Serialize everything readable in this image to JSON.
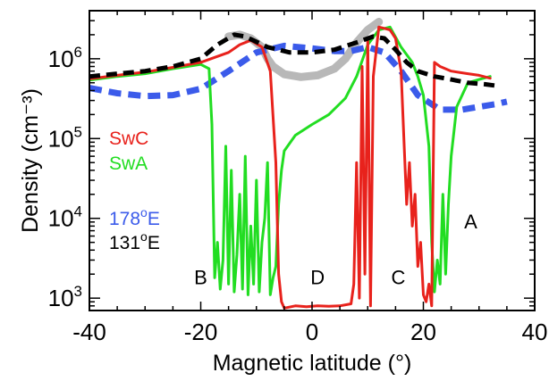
{
  "chart_data": {
    "type": "line",
    "xlabel": "Magnetic latitude (°)",
    "ylabel": "Density (cm⁻³)",
    "xlim": [
      -40,
      40
    ],
    "ylim": [
      700,
      4000000
    ],
    "yscale": "log",
    "grid": false,
    "x_ticks": [
      {
        "value": -40,
        "label": "-40"
      },
      {
        "value": -20,
        "label": "-20"
      },
      {
        "value": 0,
        "label": "0"
      },
      {
        "value": 20,
        "label": "20"
      },
      {
        "value": 40,
        "label": "40"
      }
    ],
    "y_ticks": [
      {
        "value": 1000,
        "base": "10",
        "exp": "3"
      },
      {
        "value": 10000,
        "base": "10",
        "exp": "4"
      },
      {
        "value": 100000,
        "base": "10",
        "exp": "5"
      },
      {
        "value": 1000000,
        "base": "10",
        "exp": "6"
      }
    ],
    "legend": [
      {
        "text": "SwC",
        "color": "#e8221c"
      },
      {
        "text": "SwA",
        "color": "#22dd22"
      },
      {
        "base": "178",
        "sup": "o",
        "rest": "E",
        "color": "#3b5bea"
      },
      {
        "base": "131",
        "sup": "o",
        "rest": "E",
        "color": "#000000"
      }
    ],
    "annotations": [
      {
        "text": "A",
        "x": 28.5,
        "y": 7500
      },
      {
        "text": "B",
        "x": -20,
        "y": 1500
      },
      {
        "text": "C",
        "x": 15.5,
        "y": 1500
      },
      {
        "text": "D",
        "x": 1,
        "y": 1500
      }
    ],
    "series": [
      {
        "color": "#b8b8b8",
        "width": 9,
        "dash": "",
        "points": [
          [
            -15,
            1900000
          ],
          [
            -13,
            2000000
          ],
          [
            -11,
            1800000
          ],
          [
            -9,
            1400000
          ],
          [
            -8,
            1000000
          ],
          [
            -7,
            800000
          ],
          [
            -5,
            640000
          ],
          [
            -2,
            590000
          ],
          [
            1,
            620000
          ],
          [
            4,
            750000
          ],
          [
            6,
            1000000
          ],
          [
            8,
            1600000
          ],
          [
            10,
            2300000
          ],
          [
            12,
            2900000
          ]
        ]
      },
      {
        "color": "#3b5bea",
        "width": 7,
        "dash": "14,8",
        "points": [
          [
            -40,
            430000
          ],
          [
            -35,
            370000
          ],
          [
            -30,
            340000
          ],
          [
            -25,
            350000
          ],
          [
            -20,
            420000
          ],
          [
            -15,
            700000
          ],
          [
            -10,
            1200000
          ],
          [
            -5,
            1450000
          ],
          [
            0,
            1350000
          ],
          [
            4,
            1250000
          ],
          [
            7,
            1250000
          ],
          [
            10,
            1400000
          ],
          [
            13,
            1200000
          ],
          [
            16,
            700000
          ],
          [
            19,
            350000
          ],
          [
            23,
            230000
          ],
          [
            27,
            230000
          ],
          [
            30,
            250000
          ],
          [
            33,
            270000
          ],
          [
            35,
            290000
          ]
        ]
      },
      {
        "color": "#22dd22",
        "width": 3,
        "dash": "",
        "points": [
          [
            -40,
            540000
          ],
          [
            -35,
            600000
          ],
          [
            -30,
            650000
          ],
          [
            -25,
            750000
          ],
          [
            -20,
            850000
          ],
          [
            -18.5,
            750000
          ],
          [
            -18,
            150000
          ],
          [
            -17.5,
            1800
          ],
          [
            -17,
            5000
          ],
          [
            -16.5,
            1300
          ],
          [
            -16,
            3000
          ],
          [
            -15.5,
            80000
          ],
          [
            -15,
            1500
          ],
          [
            -14.5,
            40000
          ],
          [
            -14,
            1200
          ],
          [
            -13.5,
            3500
          ],
          [
            -13,
            20000
          ],
          [
            -12.5,
            1300
          ],
          [
            -12,
            60000
          ],
          [
            -11.5,
            1100
          ],
          [
            -11,
            8000
          ],
          [
            -10.5,
            1500
          ],
          [
            -10,
            30000
          ],
          [
            -9.5,
            1200
          ],
          [
            -9,
            5000
          ],
          [
            -8.5,
            10000
          ],
          [
            -8,
            50000
          ],
          [
            -7.5,
            1100
          ],
          [
            -7,
            1800
          ],
          [
            -6.5,
            2500
          ],
          [
            -6,
            15000
          ],
          [
            -5.5,
            40000
          ],
          [
            -5,
            70000
          ],
          [
            -3,
            110000
          ],
          [
            0,
            150000
          ],
          [
            3,
            200000
          ],
          [
            6,
            320000
          ],
          [
            8,
            600000
          ],
          [
            10,
            1500000
          ],
          [
            12,
            2300000
          ],
          [
            14,
            2500000
          ],
          [
            16,
            1400000
          ],
          [
            18,
            900000
          ],
          [
            19,
            600000
          ],
          [
            20,
            350000
          ],
          [
            21,
            80000
          ],
          [
            21.5,
            5000
          ],
          [
            22,
            1200
          ],
          [
            22.5,
            3000
          ],
          [
            23,
            1500
          ],
          [
            23.5,
            20000
          ],
          [
            24,
            2000
          ],
          [
            24.5,
            15000
          ],
          [
            25,
            60000
          ],
          [
            26,
            250000
          ],
          [
            28,
            500000
          ],
          [
            30,
            550000
          ],
          [
            32,
            600000
          ]
        ]
      },
      {
        "color": "#e8221c",
        "width": 3,
        "dash": "",
        "points": [
          [
            -40,
            560000
          ],
          [
            -35,
            620000
          ],
          [
            -30,
            680000
          ],
          [
            -25,
            780000
          ],
          [
            -20,
            900000
          ],
          [
            -15,
            1200000
          ],
          [
            -13,
            1500000
          ],
          [
            -11,
            1700000
          ],
          [
            -9,
            1400000
          ],
          [
            -7.5,
            700000
          ],
          [
            -6.5,
            50000
          ],
          [
            -6,
            2000
          ],
          [
            -5.5,
            900
          ],
          [
            -5,
            750
          ],
          [
            -3,
            800
          ],
          [
            -1,
            780
          ],
          [
            1,
            800
          ],
          [
            3,
            790
          ],
          [
            5,
            800
          ],
          [
            7,
            850
          ],
          [
            7.5,
            1500
          ],
          [
            8,
            50000
          ],
          [
            8.5,
            1000
          ],
          [
            9,
            800000
          ],
          [
            9.5,
            2000
          ],
          [
            10,
            1800000
          ],
          [
            10.5,
            800
          ],
          [
            11,
            600000
          ],
          [
            12,
            2500000
          ],
          [
            13,
            2400000
          ],
          [
            14,
            2300000
          ],
          [
            15,
            1800000
          ],
          [
            16,
            700000
          ],
          [
            16.5,
            100000
          ],
          [
            17,
            15000
          ],
          [
            17.5,
            50000
          ],
          [
            18,
            8000
          ],
          [
            18.5,
            20000
          ],
          [
            19,
            2500
          ],
          [
            19.5,
            5000
          ],
          [
            20,
            1100
          ],
          [
            20.5,
            900
          ],
          [
            21,
            1500
          ],
          [
            21.5,
            800
          ],
          [
            22,
            900000
          ],
          [
            23,
            800000
          ],
          [
            25,
            700000
          ],
          [
            28,
            650000
          ],
          [
            30,
            620000
          ],
          [
            32,
            570000
          ]
        ]
      },
      {
        "color": "#000000",
        "width": 5,
        "dash": "12,7",
        "points": [
          [
            -40,
            600000
          ],
          [
            -35,
            650000
          ],
          [
            -30,
            700000
          ],
          [
            -25,
            800000
          ],
          [
            -20,
            1000000
          ],
          [
            -17,
            1500000
          ],
          [
            -14,
            2000000
          ],
          [
            -12,
            1900000
          ],
          [
            -8,
            1400000
          ],
          [
            -4,
            1200000
          ],
          [
            0,
            1200000
          ],
          [
            4,
            1300000
          ],
          [
            8,
            1600000
          ],
          [
            11,
            1900000
          ],
          [
            13,
            1800000
          ],
          [
            15,
            1300000
          ],
          [
            17,
            900000
          ],
          [
            19,
            700000
          ],
          [
            22,
            600000
          ],
          [
            25,
            550000
          ],
          [
            28,
            500000
          ],
          [
            31,
            480000
          ],
          [
            33,
            460000
          ]
        ]
      }
    ]
  }
}
